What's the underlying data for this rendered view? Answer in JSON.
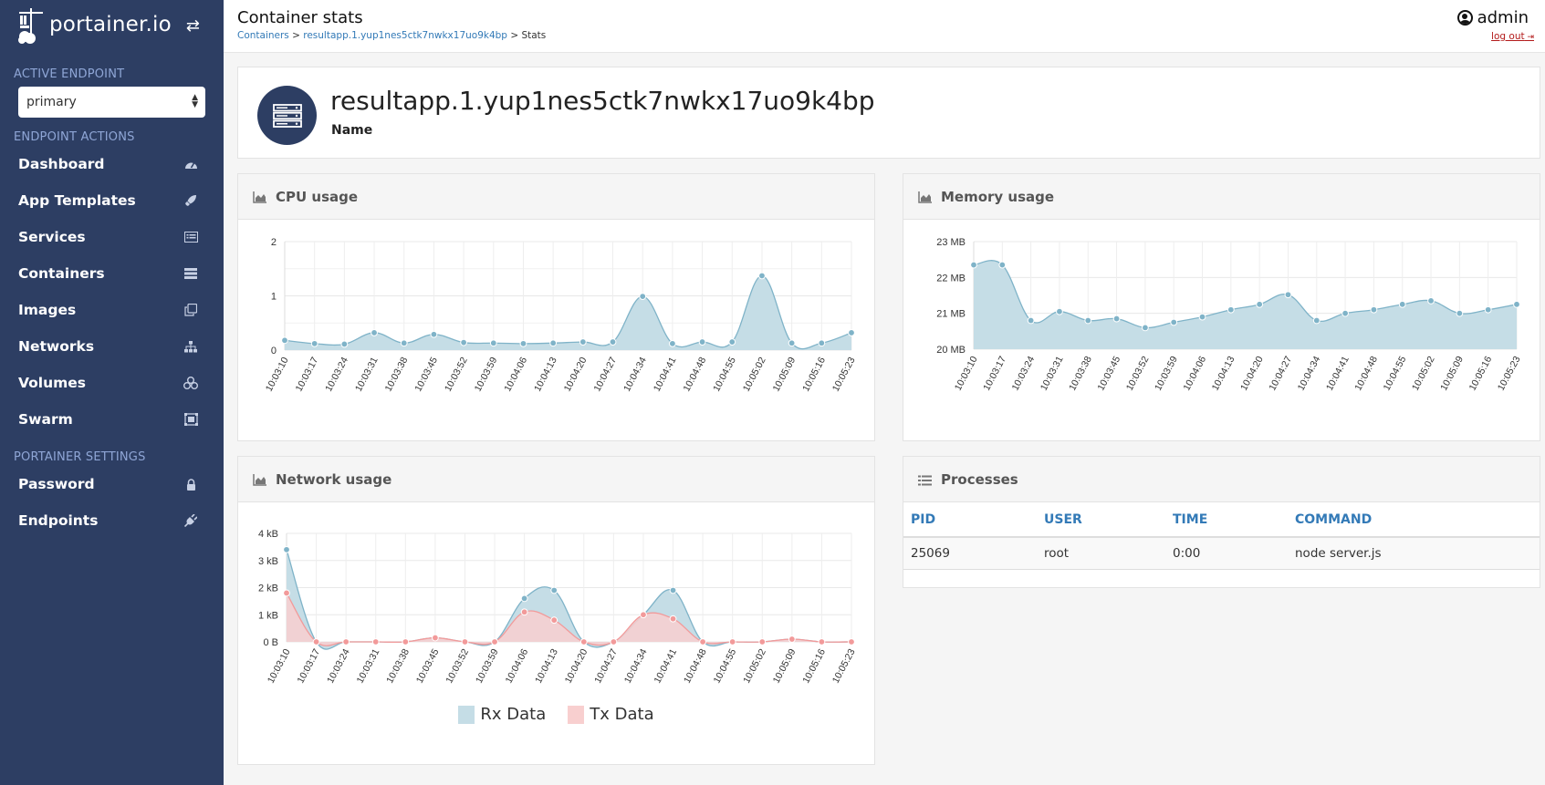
{
  "brand": {
    "name": "portainer.io"
  },
  "sidebar": {
    "active_endpoint_title": "ACTIVE ENDPOINT",
    "endpoint_value": "primary",
    "endpoint_actions_title": "ENDPOINT ACTIONS",
    "items": [
      {
        "label": "Dashboard",
        "icon": "dashboard-icon"
      },
      {
        "label": "App Templates",
        "icon": "rocket-icon"
      },
      {
        "label": "Services",
        "icon": "list-alt-icon"
      },
      {
        "label": "Containers",
        "icon": "server-icon"
      },
      {
        "label": "Images",
        "icon": "clone-icon"
      },
      {
        "label": "Networks",
        "icon": "sitemap-icon"
      },
      {
        "label": "Volumes",
        "icon": "cubes-icon"
      },
      {
        "label": "Swarm",
        "icon": "object-group-icon"
      }
    ],
    "settings_title": "PORTAINER SETTINGS",
    "settings_items": [
      {
        "label": "Password",
        "icon": "lock-icon"
      },
      {
        "label": "Endpoints",
        "icon": "plug-icon"
      }
    ]
  },
  "header": {
    "title": "Container stats",
    "breadcrumb_containers": "Containers",
    "breadcrumb_sep1": " > ",
    "breadcrumb_container": "resultapp.1.yup1nes5ctk7nwkx17uo9k4bp",
    "breadcrumb_sep2": " > ",
    "breadcrumb_current": "Stats",
    "user": "admin",
    "logout": "log out"
  },
  "container": {
    "name": "resultapp.1.yup1nes5ctk7nwkx17uo9k4bp",
    "name_label": "Name"
  },
  "panels": {
    "cpu_title": "CPU usage",
    "memory_title": "Memory usage",
    "network_title": "Network usage",
    "processes_title": "Processes"
  },
  "processes": {
    "headers": [
      "PID",
      "USER",
      "TIME",
      "COMMAND"
    ],
    "rows": [
      [
        "25069",
        "root",
        "0:00",
        "node server.js"
      ]
    ]
  },
  "chart_data": [
    {
      "id": "cpu",
      "type": "area",
      "x": [
        "10:03:10",
        "10:03:17",
        "10:03:24",
        "10:03:31",
        "10:03:38",
        "10:03:45",
        "10:03:52",
        "10:03:59",
        "10:04:06",
        "10:04:13",
        "10:04:20",
        "10:04:27",
        "10:04:34",
        "10:04:41",
        "10:04:48",
        "10:04:55",
        "10:05:02",
        "10:05:09",
        "10:05:16",
        "10:05:23"
      ],
      "series": [
        {
          "values": [
            0.18,
            0.12,
            0.11,
            0.32,
            0.13,
            0.29,
            0.14,
            0.13,
            0.12,
            0.13,
            0.15,
            0.15,
            0.99,
            0.12,
            0.15,
            0.15,
            1.37,
            0.13,
            0.13,
            0.32
          ],
          "color": "#7fb3c8"
        }
      ],
      "yticks": [
        "0",
        "1",
        "2"
      ],
      "ylim": [
        0,
        2
      ]
    },
    {
      "id": "memory",
      "type": "area",
      "x": [
        "10:03:10",
        "10:03:17",
        "10:03:24",
        "10:03:31",
        "10:03:38",
        "10:03:45",
        "10:03:52",
        "10:03:59",
        "10:04:06",
        "10:04:13",
        "10:04:20",
        "10:04:27",
        "10:04:34",
        "10:04:41",
        "10:04:48",
        "10:04:55",
        "10:05:02",
        "10:05:09",
        "10:05:16",
        "10:05:23"
      ],
      "series": [
        {
          "values": [
            22.35,
            22.35,
            20.8,
            21.05,
            20.8,
            20.85,
            20.6,
            20.75,
            20.9,
            21.1,
            21.25,
            21.52,
            20.8,
            21.0,
            21.1,
            21.25,
            21.35,
            21.0,
            21.1,
            21.25
          ],
          "color": "#7fb3c8"
        }
      ],
      "yticks": [
        "20 MB",
        "21 MB",
        "22 MB",
        "23 MB"
      ],
      "ylim": [
        20,
        23
      ]
    },
    {
      "id": "network",
      "type": "area",
      "x": [
        "10:03:10",
        "10:03:17",
        "10:03:24",
        "10:03:31",
        "10:03:38",
        "10:03:45",
        "10:03:52",
        "10:03:59",
        "10:04:06",
        "10:04:13",
        "10:04:20",
        "10:04:27",
        "10:04:34",
        "10:04:41",
        "10:04:48",
        "10:04:55",
        "10:05:02",
        "10:05:09",
        "10:05:16",
        "10:05:23"
      ],
      "series": [
        {
          "name": "Rx Data",
          "values": [
            3.4,
            0,
            0,
            0,
            0,
            0.15,
            0,
            0,
            1.6,
            1.9,
            0,
            0,
            1.0,
            1.9,
            0,
            0,
            0,
            0.1,
            0,
            0
          ],
          "color": "#7fb3c8",
          "fill": "#c5dde6"
        },
        {
          "name": "Tx Data",
          "values": [
            1.8,
            0,
            0,
            0,
            0,
            0.15,
            0,
            0,
            1.1,
            0.8,
            0,
            0,
            1.0,
            0.85,
            0,
            0,
            0,
            0.1,
            0,
            0
          ],
          "color": "#f29a9a",
          "fill": "#f8cfcf"
        }
      ],
      "yticks": [
        "0 B",
        "1 kB",
        "2 kB",
        "3 kB",
        "4 kB"
      ],
      "ylim": [
        0,
        4
      ]
    }
  ]
}
